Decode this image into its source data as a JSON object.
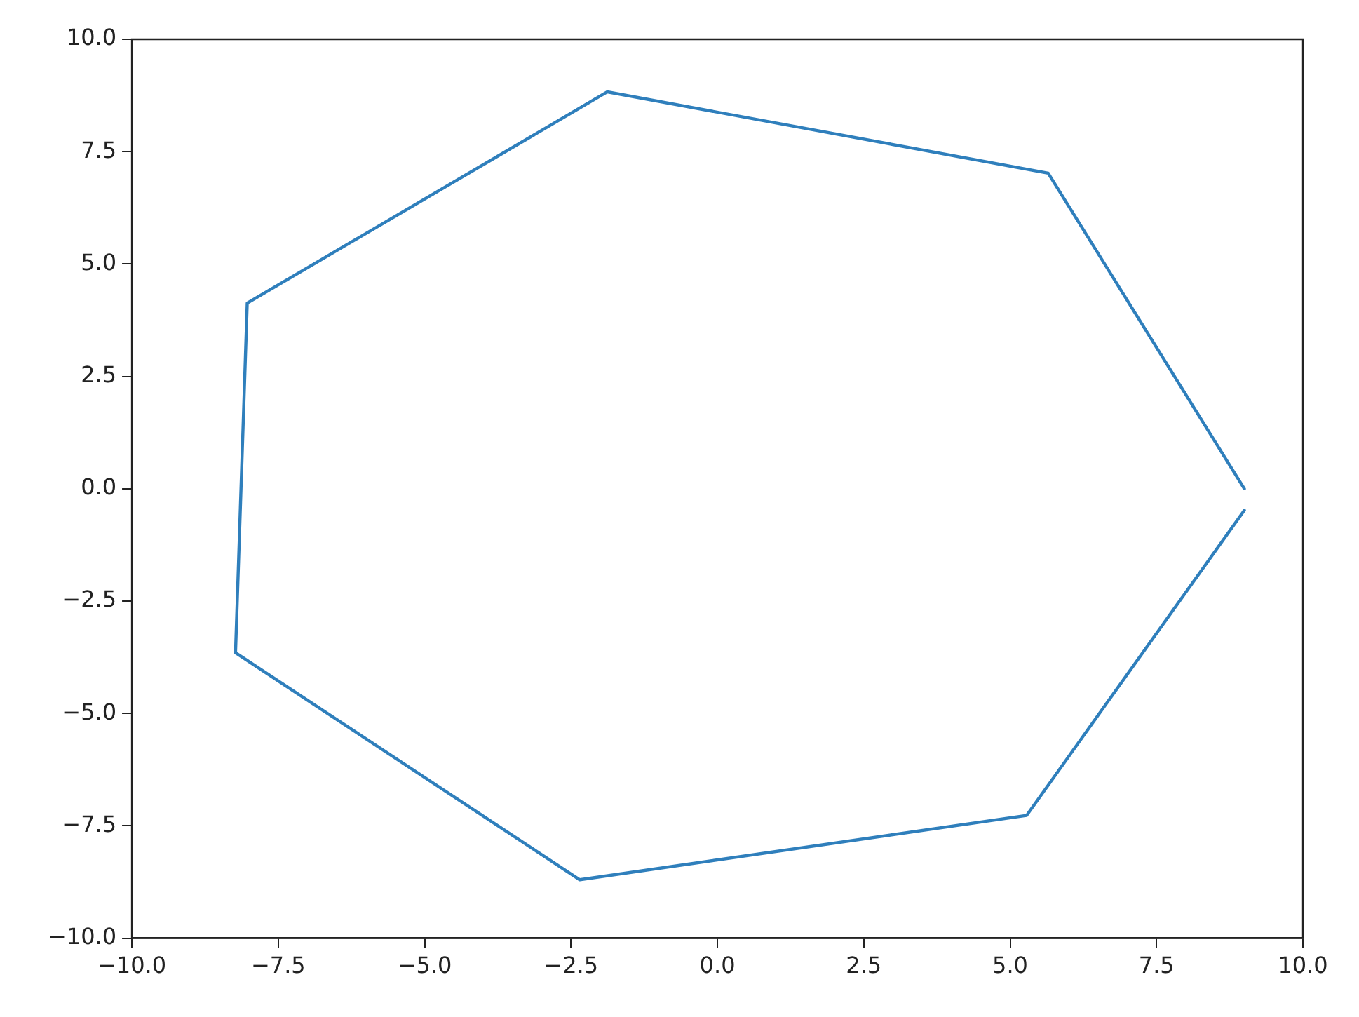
{
  "chart_data": {
    "type": "line",
    "series": [
      {
        "color": "#2f7fbc",
        "x": [
          9.0,
          5.65,
          -1.88,
          -8.03,
          -8.23,
          -2.35,
          5.28,
          9.0
        ],
        "values": [
          0.0,
          7.02,
          8.83,
          4.13,
          -3.65,
          -8.7,
          -7.27,
          -0.48
        ]
      }
    ],
    "xlim": [
      -10,
      10
    ],
    "ylim": [
      -10,
      10
    ],
    "xticks": [
      {
        "value": -10,
        "label": "−10.0"
      },
      {
        "value": -7.5,
        "label": "−7.5"
      },
      {
        "value": -5,
        "label": "−5.0"
      },
      {
        "value": -2.5,
        "label": "−2.5"
      },
      {
        "value": 0,
        "label": "0.0"
      },
      {
        "value": 2.5,
        "label": "2.5"
      },
      {
        "value": 5,
        "label": "5.0"
      },
      {
        "value": 7.5,
        "label": "7.5"
      },
      {
        "value": 10,
        "label": "10.0"
      }
    ],
    "yticks": [
      {
        "value": -10,
        "label": "−10.0"
      },
      {
        "value": -7.5,
        "label": "−7.5"
      },
      {
        "value": -5,
        "label": "−5.0"
      },
      {
        "value": -2.5,
        "label": "−2.5"
      },
      {
        "value": 0,
        "label": "0.0"
      },
      {
        "value": 2.5,
        "label": "2.5"
      },
      {
        "value": 5,
        "label": "5.0"
      },
      {
        "value": 7.5,
        "label": "7.5"
      },
      {
        "value": 10,
        "label": "10.0"
      }
    ],
    "grid": false,
    "legend": false,
    "marker": "none",
    "line_style": "solid"
  }
}
